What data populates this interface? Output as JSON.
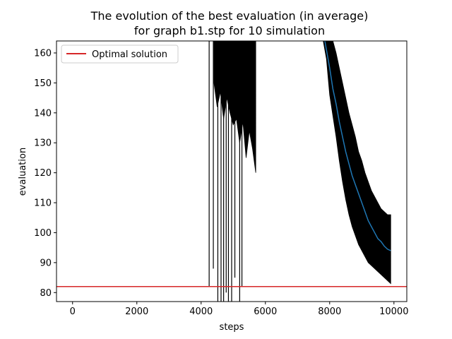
{
  "chart_data": {
    "type": "line",
    "title": "The evolution of the best evaluation (in average)",
    "subtitle": "for graph b1.stp for 10 simulation",
    "xlabel": "steps",
    "ylabel": "evaluation",
    "xlim": [
      -500,
      10400
    ],
    "ylim": [
      77,
      164
    ],
    "xticks": [
      0,
      2000,
      4000,
      6000,
      8000,
      10000
    ],
    "yticks": [
      80,
      90,
      100,
      110,
      120,
      130,
      140,
      150,
      160
    ],
    "grid": false,
    "legend_position": "top-left",
    "optimal_solution": 82,
    "colors": {
      "mean": "#1f77b4",
      "band": "#000000",
      "optimal": "#d62728"
    },
    "series": [
      {
        "name": "Optimal solution",
        "kind": "hline",
        "value": 82
      },
      {
        "kind": "mean",
        "x": [
          7850,
          8000,
          8100,
          8200,
          8300,
          8400,
          8500,
          8600,
          8700,
          8800,
          8900,
          9000,
          9100,
          9200,
          9300,
          9400,
          9500,
          9600,
          9700,
          9800,
          9900
        ],
        "y": [
          164,
          155,
          148,
          143,
          137,
          132,
          127,
          123,
          119,
          116,
          113,
          110,
          107,
          104,
          102,
          100,
          98,
          97,
          95.5,
          94.5,
          94
        ]
      },
      {
        "kind": "band",
        "x": [
          7700,
          7800,
          7900,
          8000,
          8100,
          8200,
          8300,
          8400,
          8500,
          8600,
          8700,
          8800,
          8900,
          9000,
          9100,
          9200,
          9300,
          9400,
          9500,
          9600,
          9700,
          9800,
          9900
        ],
        "upper": [
          164,
          164,
          164,
          164,
          164,
          160,
          155,
          150,
          145,
          140,
          136,
          132,
          127,
          124,
          120,
          117,
          114,
          112,
          110,
          108,
          107,
          106,
          106
        ],
        "lower": [
          164,
          164,
          158,
          146,
          139,
          132,
          124,
          117,
          111,
          106,
          102,
          99,
          96,
          94,
          92,
          90,
          89,
          88,
          87,
          86,
          85,
          84,
          83
        ]
      },
      {
        "kind": "early_band",
        "x": [
          4400,
          4500,
          4600,
          4700,
          4800,
          4900,
          5000,
          5100,
          5200,
          5300,
          5400,
          5500,
          5600,
          5700
        ],
        "upper": [
          164,
          164,
          164,
          164,
          164,
          164,
          164,
          164,
          164,
          164,
          164,
          164,
          164,
          164
        ],
        "lower": [
          150,
          142,
          147,
          138,
          145,
          140,
          136,
          138,
          130,
          137,
          125,
          134,
          128,
          120
        ]
      },
      {
        "kind": "spikes",
        "x": [
          4250,
          4380,
          4520,
          4620,
          4700,
          4780,
          4850,
          4950,
          5050,
          5200,
          5270
        ],
        "lower": [
          82,
          88,
          77,
          77,
          77,
          80,
          77,
          77,
          85,
          77,
          82
        ]
      }
    ]
  }
}
